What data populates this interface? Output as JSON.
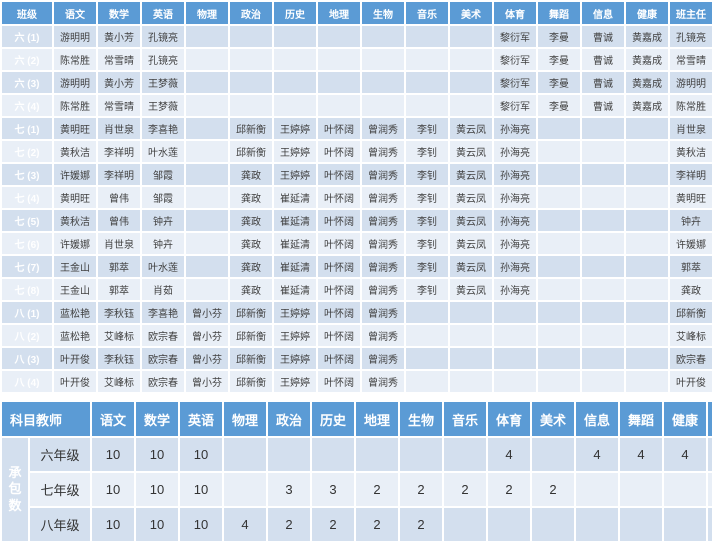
{
  "colors": {
    "header_bg": "#5B9BD5",
    "row_dark": "#D3DFEE",
    "row_light": "#E9EFF7",
    "header_text": "#FFFFFF"
  },
  "top_table": {
    "headers": [
      "班级",
      "语文",
      "数学",
      "英语",
      "物理",
      "政治",
      "历史",
      "地理",
      "生物",
      "音乐",
      "美术",
      "体育",
      "舞蹈",
      "信息",
      "健康",
      "班主任"
    ],
    "rows": [
      {
        "class_label": "六 (1)",
        "cells": [
          "游明明",
          "黄小芳",
          "孔镜亮",
          "",
          "",
          "",
          "",
          "",
          "",
          "",
          "黎衍军",
          "李曼",
          "曹诚",
          "黄嘉成",
          "孔镜亮"
        ]
      },
      {
        "class_label": "六 (2)",
        "cells": [
          "陈常胜",
          "常雪晴",
          "孔镜亮",
          "",
          "",
          "",
          "",
          "",
          "",
          "",
          "黎衍军",
          "李曼",
          "曹诚",
          "黄嘉成",
          "常雪晴"
        ]
      },
      {
        "class_label": "六 (3)",
        "cells": [
          "游明明",
          "黄小芳",
          "王梦薇",
          "",
          "",
          "",
          "",
          "",
          "",
          "",
          "黎衍军",
          "李曼",
          "曹诚",
          "黄嘉成",
          "游明明"
        ]
      },
      {
        "class_label": "六 (4)",
        "cells": [
          "陈常胜",
          "常雪晴",
          "王梦薇",
          "",
          "",
          "",
          "",
          "",
          "",
          "",
          "黎衍军",
          "李曼",
          "曹诚",
          "黄嘉成",
          "陈常胜"
        ]
      },
      {
        "class_label": "七 (1)",
        "cells": [
          "黄明旺",
          "肖世泉",
          "李喜艳",
          "",
          "邱新衡",
          "王婷婷",
          "叶怀阔",
          "曾润秀",
          "李钊",
          "黄云凤",
          "孙海亮",
          "",
          "",
          "",
          "肖世泉"
        ]
      },
      {
        "class_label": "七 (2)",
        "cells": [
          "黄秋洁",
          "李祥明",
          "叶水莲",
          "",
          "邱新衡",
          "王婷婷",
          "叶怀阔",
          "曾润秀",
          "李钊",
          "黄云凤",
          "孙海亮",
          "",
          "",
          "",
          "黄秋洁"
        ]
      },
      {
        "class_label": "七 (3)",
        "cells": [
          "许媛娜",
          "李祥明",
          "邹霞",
          "",
          "龚政",
          "王婷婷",
          "叶怀阔",
          "曾润秀",
          "李钊",
          "黄云凤",
          "孙海亮",
          "",
          "",
          "",
          "李祥明"
        ]
      },
      {
        "class_label": "七 (4)",
        "cells": [
          "黄明旺",
          "曾伟",
          "邹霞",
          "",
          "龚政",
          "崔延清",
          "叶怀阔",
          "曾润秀",
          "李钊",
          "黄云凤",
          "孙海亮",
          "",
          "",
          "",
          "黄明旺"
        ]
      },
      {
        "class_label": "七 (5)",
        "cells": [
          "黄秋洁",
          "曾伟",
          "钟卉",
          "",
          "龚政",
          "崔延清",
          "叶怀阔",
          "曾润秀",
          "李钊",
          "黄云凤",
          "孙海亮",
          "",
          "",
          "",
          "钟卉"
        ]
      },
      {
        "class_label": "七 (6)",
        "cells": [
          "许媛娜",
          "肖世泉",
          "钟卉",
          "",
          "龚政",
          "崔延清",
          "叶怀阔",
          "曾润秀",
          "李钊",
          "黄云凤",
          "孙海亮",
          "",
          "",
          "",
          "许媛娜"
        ]
      },
      {
        "class_label": "七 (7)",
        "cells": [
          "王金山",
          "郭萃",
          "叶水莲",
          "",
          "龚政",
          "崔延清",
          "叶怀阔",
          "曾润秀",
          "李钊",
          "黄云凤",
          "孙海亮",
          "",
          "",
          "",
          "郭萃"
        ]
      },
      {
        "class_label": "七 (8)",
        "cells": [
          "王金山",
          "郭萃",
          "肖茹",
          "",
          "龚政",
          "崔延清",
          "叶怀阔",
          "曾润秀",
          "李钊",
          "黄云凤",
          "孙海亮",
          "",
          "",
          "",
          "龚政"
        ]
      },
      {
        "class_label": "八 (1)",
        "cells": [
          "蓝松艳",
          "李秋钰",
          "李喜艳",
          "曾小芬",
          "邱新衡",
          "王婷婷",
          "叶怀阔",
          "曾润秀",
          "",
          "",
          "",
          "",
          "",
          "",
          "邱新衡"
        ]
      },
      {
        "class_label": "八 (2)",
        "cells": [
          "蓝松艳",
          "艾峰标",
          "欧宗春",
          "曾小芬",
          "邱新衡",
          "王婷婷",
          "叶怀阔",
          "曾润秀",
          "",
          "",
          "",
          "",
          "",
          "",
          "艾峰标"
        ]
      },
      {
        "class_label": "八 (3)",
        "cells": [
          "叶开俊",
          "李秋钰",
          "欧宗春",
          "曾小芬",
          "邱新衡",
          "王婷婷",
          "叶怀阔",
          "曾润秀",
          "",
          "",
          "",
          "",
          "",
          "",
          "欧宗春"
        ]
      },
      {
        "class_label": "八 (4)",
        "cells": [
          "叶开俊",
          "艾峰标",
          "欧宗春",
          "曾小芬",
          "邱新衡",
          "王婷婷",
          "叶怀阔",
          "曾润秀",
          "",
          "",
          "",
          "",
          "",
          "",
          "叶开俊"
        ]
      }
    ]
  },
  "bottom_table": {
    "corner_label": "科目教师",
    "group_label": "承包数",
    "headers": [
      "语文",
      "数学",
      "英语",
      "物理",
      "政治",
      "历史",
      "地理",
      "生物",
      "音乐",
      "体育",
      "美术",
      "信息",
      "舞蹈",
      "健康"
    ],
    "rows": [
      {
        "grade": "六年级",
        "values": [
          "10",
          "10",
          "10",
          "",
          "",
          "",
          "",
          "",
          "",
          "4",
          "",
          "4",
          "4",
          "4"
        ]
      },
      {
        "grade": "七年级",
        "values": [
          "10",
          "10",
          "10",
          "",
          "3",
          "3",
          "2",
          "2",
          "2",
          "2",
          "2",
          "",
          "",
          ""
        ]
      },
      {
        "grade": "八年级",
        "values": [
          "10",
          "10",
          "10",
          "4",
          "2",
          "2",
          "2",
          "2",
          "",
          "",
          "",
          "",
          "",
          ""
        ]
      }
    ]
  }
}
